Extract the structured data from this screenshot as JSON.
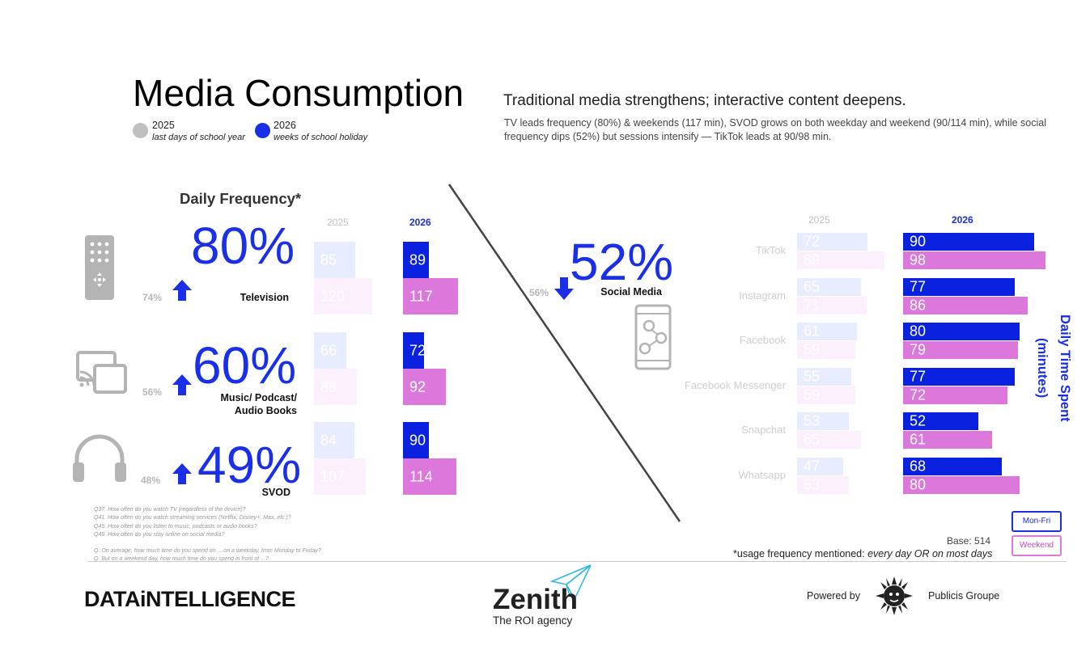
{
  "title": "Media Consumption",
  "subtitle": "Traditional media strengthens; interactive content deepens.",
  "description": "TV leads frequency (80%) & weekends (117 min), SVOD grows on both weekday and weekend (90/114 min), while social frequency dips (52%) but sessions intensify — TikTok leads at 90/98 min.",
  "legend": {
    "y2025": {
      "label": "2025",
      "sublabel": "last days of school year",
      "color": "#c0c0c0"
    },
    "y2026": {
      "label": "2026",
      "sublabel": "weeks of school holiday",
      "color": "#1a2fe8"
    }
  },
  "frequency": {
    "heading": "Daily Frequency*",
    "col_2025": "2025",
    "col_2026": "2026"
  },
  "time_spent": {
    "col_2025": "2025",
    "col_2026": "2026",
    "axis_title": "Daily Time Spent (minutes)",
    "legend_weekday": "Mon-Fri",
    "legend_weekend": "Weekend"
  },
  "chart_data": [
    {
      "type": "bar",
      "categories": [
        "Television",
        "Music/ Podcast/ Audio Books",
        "SVOD"
      ],
      "frequency_2026": [
        "80%",
        "60%",
        "49%"
      ],
      "frequency_2025": [
        "74%",
        "56%",
        "48%"
      ],
      "series": [
        {
          "name": "2025 Mon-Fri",
          "values": [
            85,
            66,
            84
          ]
        },
        {
          "name": "2025 Weekend",
          "values": [
            120,
            88,
            107
          ]
        },
        {
          "name": "2026 Mon-Fri",
          "values": [
            89,
            72,
            90
          ]
        },
        {
          "name": "2026 Weekend",
          "values": [
            117,
            92,
            114
          ]
        }
      ],
      "ylabel": "Daily Time Spent (minutes)",
      "xlim": [
        0,
        120
      ]
    },
    {
      "type": "bar",
      "category": "Social Media",
      "frequency_2026": "52%",
      "frequency_2025": "56%",
      "categories": [
        "TikTok",
        "Instagram",
        "Facebook",
        "Facebook Messenger",
        "Snapchat",
        "Whatsapp"
      ],
      "series": [
        {
          "name": "2025 Mon-Fri",
          "values": [
            72,
            65,
            61,
            55,
            53,
            47
          ]
        },
        {
          "name": "2025 Weekend",
          "values": [
            89,
            71,
            59,
            59,
            65,
            53
          ]
        },
        {
          "name": "2026 Mon-Fri",
          "values": [
            90,
            77,
            80,
            77,
            52,
            68
          ]
        },
        {
          "name": "2026 Weekend",
          "values": [
            98,
            86,
            79,
            72,
            61,
            80
          ]
        }
      ],
      "ylabel": "Daily Time Spent (minutes)",
      "xlim": [
        0,
        100
      ]
    }
  ],
  "questions": [
    "Q37. How often do you watch TV (regardless of the device)?",
    "Q41. How often do you watch streaming services (Netflix, Disney+, Max, etc.)?",
    "Q45. How often do you listen to music, podcasts or audio books?",
    "Q49. How often do you stay online on social media?",
    "Q. On average, how much time do you spend on ... on a weekday, from Monday to Friday?",
    "Q. But on a weekend day, how much time do you spend in front of ...?"
  ],
  "base": "Base: 514",
  "footnote_prefix": "*usage frequency mentioned: ",
  "footnote_italic": "every day OR on most days",
  "footer": {
    "data_intelligence": "DATAiNTELLIGENCE",
    "zenith": "Zenith",
    "zenith_tagline": "The ROI agency",
    "powered_by": "Powered by",
    "publicis": "Publicis Groupe"
  },
  "icons": [
    "remote-control-icon",
    "cast-screen-icon",
    "headphones-icon",
    "smartphone-social-icon",
    "arrow-up-icon",
    "arrow-down-icon",
    "publicis-lion-icon",
    "zenith-paper-plane-icon"
  ]
}
